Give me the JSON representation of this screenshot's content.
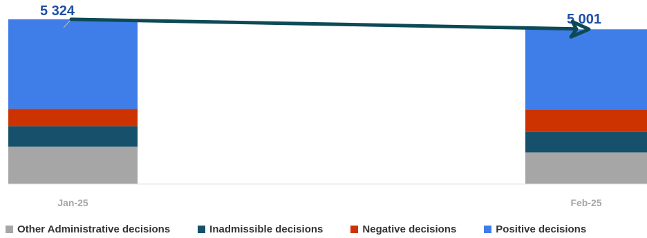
{
  "chart_data": {
    "type": "bar",
    "stacked": true,
    "categories": [
      "Jan-25",
      "Feb-25"
    ],
    "series": [
      {
        "name": "Other Administrative decisions",
        "values": [
          1210,
          1020
        ],
        "color": "#a6a6a6"
      },
      {
        "name": "Inadmissible decisions",
        "values": [
          660,
          660
        ],
        "color": "#17506a"
      },
      {
        "name": "Negative decisions",
        "values": [
          560,
          730
        ],
        "color": "#cc3300"
      },
      {
        "name": "Positive decisions",
        "values": [
          2894,
          2591
        ],
        "color": "#3f7de8"
      }
    ],
    "totals": [
      "5 324",
      "5 001"
    ],
    "ylim": [
      0,
      5500
    ],
    "legend": "bottom",
    "grid": false,
    "arrow_color": "#0d4a55"
  }
}
